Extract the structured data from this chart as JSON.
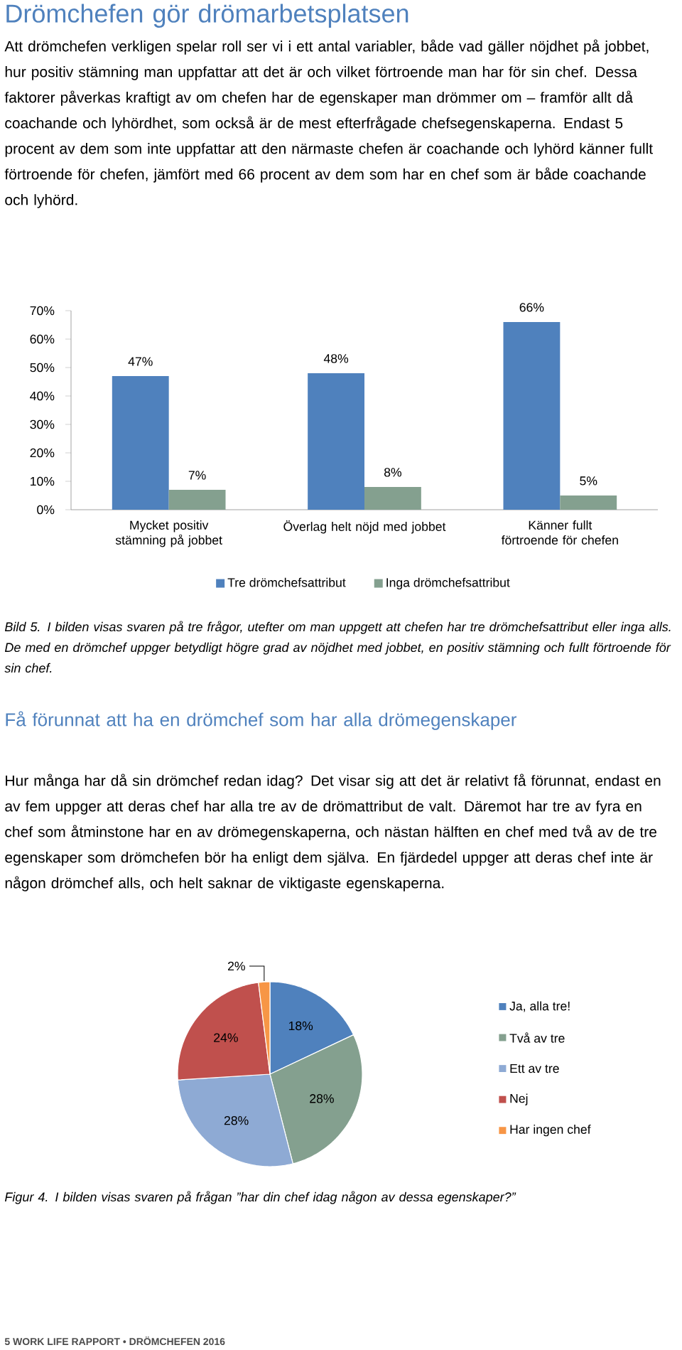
{
  "chart_data": [
    {
      "type": "bar",
      "title": "Drömchefen gör drömarbetsplatsen",
      "subtitle": "Att drömchefen verkligen spelar roll ser vi i ett antal variabler, både vad gäller nöjdhet på jobbet, hur positiv stämning man uppfattar att det är och vilket förtroende man har för sin chef. Dessa faktorer påverkas kraftigt av om chefen har de egenskaper man drömmer om – framför allt då coachande och lyhördhet, som också är de mest efterfrågade chefsegenskaperna. Endast 5 procent av dem som inte uppfattar att den närmaste chefen är coachande och lyhörd känner fullt förtroende för chefen, jämfört med 66 procent av dem som har en chef som är både coachande och lyhörd.",
      "categories": [
        "Mycket positiv stämning på jobbet",
        "Överlag helt nöjd med jobbet",
        "Känner fullt förtroende för chefen"
      ],
      "series": [
        {
          "name": "Tre drömchefsattribut",
          "color": "#4f81bd",
          "values": [
            47,
            48,
            66
          ],
          "value_labels": [
            "47%",
            "48%",
            "66%"
          ]
        },
        {
          "name": "Inga drömchefsattribut",
          "color": "#84a08f",
          "values": [
            7,
            8,
            5
          ],
          "value_labels": [
            "7%",
            "8%",
            "5%"
          ]
        }
      ],
      "ylim": [
        0,
        70
      ],
      "yticks": [
        {
          "value": 0,
          "label": "0%"
        },
        {
          "value": 10,
          "label": "10%"
        },
        {
          "value": 20,
          "label": "20%"
        },
        {
          "value": 30,
          "label": "30%"
        },
        {
          "value": 40,
          "label": "40%"
        },
        {
          "value": 50,
          "label": "50%"
        },
        {
          "value": 60,
          "label": "60%"
        },
        {
          "value": 70,
          "label": "70%"
        }
      ],
      "legend": "bottom",
      "annotations": [
        "Bild 5. I bilden visas svaren på tre frågor, utefter om man uppgett att chefen har tre drömchefsattribut eller inga alls. De med en drömchef uppger betydligt högre grad av nöjdhet med jobbet, en positiv stämning och fullt förtroende för sin chef."
      ]
    },
    {
      "type": "pie",
      "title": "Få förunnat att ha en drömchef som har alla drömegenskaper",
      "subtitle": "Hur många har då sin drömchef redan idag? Det visar sig att det är relativt få förunnat, endast en av fem uppger att deras chef har alla tre av de drömattribut de valt. Däremot har tre av fyra en chef som åtminstone har en av drömegenskaperna, och nästan hälften en chef med två av de tre egenskaper som drömchefen bör ha enligt dem själva. En fjärdedel uppger att deras chef inte är någon drömchef alls, och helt saknar de viktigaste egenskaperna.",
      "categories": [
        "Ja, alla tre!",
        "Två av tre",
        "Ett av tre",
        "Nej",
        "Har ingen chef"
      ],
      "values": [
        18,
        28,
        28,
        24,
        2
      ],
      "value_labels": [
        "18%",
        "28%",
        "28%",
        "24%",
        "2%"
      ],
      "colors": [
        "#4f81bd",
        "#84a08f",
        "#8eaad4",
        "#c0504d",
        "#f79646"
      ],
      "legend": "right",
      "annotations": [
        "Figur 4. I bilden visas svaren på frågan ”har din chef idag någon av dessa egenskaper?”",
        "5 WORK LIFE RAPPORT • DRÖMCHEFEN 2016"
      ]
    }
  ]
}
